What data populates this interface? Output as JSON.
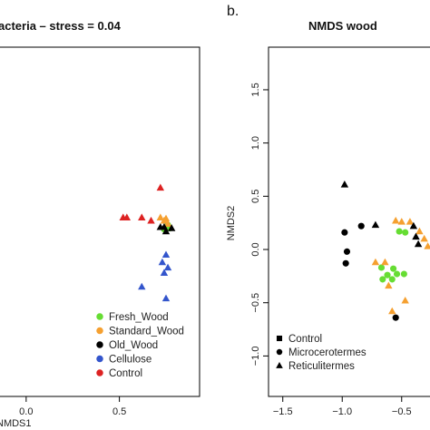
{
  "chart_data": [
    {
      "panel": "",
      "type": "scatter",
      "title": "acteria – stress = 0.04",
      "xlabel": "NMDS1",
      "ylabel": "",
      "xlim": [
        -0.15,
        0.93
      ],
      "ylim": [
        -1.38,
        1.9
      ],
      "x_ticks": [
        0.0,
        0.5
      ],
      "x_tick_labels": [
        "0.0",
        "0.5"
      ],
      "legend": "bottom-right",
      "series": [
        {
          "name": "Fresh_Wood",
          "color": "#66dd33",
          "marker": "circle",
          "points": [
            [
              0.74,
              0.19
            ],
            [
              0.76,
              0.23
            ],
            [
              0.77,
              0.2
            ]
          ]
        },
        {
          "name": "Standard_Wood",
          "color": "#f5a030",
          "marker": "triangle",
          "points": [
            [
              0.72,
              0.3
            ],
            [
              0.74,
              0.27
            ],
            [
              0.76,
              0.24
            ],
            [
              0.75,
              0.29
            ]
          ]
        },
        {
          "name": "Old_Wood",
          "color": "#000000",
          "marker": "triangle",
          "points": [
            [
              0.72,
              0.21
            ],
            [
              0.74,
              0.21
            ],
            [
              0.75,
              0.17
            ],
            [
              0.78,
              0.2
            ]
          ]
        },
        {
          "name": "Cellulose",
          "color": "#3355cc",
          "marker": "triangle",
          "points": [
            [
              0.73,
              -0.12
            ],
            [
              0.75,
              -0.05
            ],
            [
              0.76,
              -0.17
            ],
            [
              0.74,
              -0.22
            ],
            [
              0.62,
              -0.35
            ],
            [
              0.75,
              -0.46
            ]
          ]
        },
        {
          "name": "Control",
          "color": "#dd2222",
          "marker": "triangle",
          "points": [
            [
              0.52,
              0.3
            ],
            [
              0.54,
              0.3
            ],
            [
              0.62,
              0.3
            ],
            [
              0.67,
              0.27
            ],
            [
              0.72,
              0.58
            ]
          ]
        }
      ]
    },
    {
      "panel": "b.",
      "type": "scatter",
      "title": "NMDS wood",
      "xlabel": "",
      "ylabel": "NMDS2",
      "xlim": [
        -1.62,
        -0.17
      ],
      "ylim": [
        -1.38,
        1.9
      ],
      "x_ticks": [
        -1.5,
        -1.0,
        -0.5
      ],
      "x_tick_labels": [
        "−1.5",
        "−1.0",
        "−0.5"
      ],
      "y_ticks": [
        -1.0,
        -0.5,
        0.0,
        0.5,
        1.0,
        1.5
      ],
      "y_tick_labels": [
        "−1.0",
        "−0.5",
        "0.0",
        "0.5",
        "1.0",
        "1.5"
      ],
      "legend": "bottom-left",
      "series": [
        {
          "name": "Control",
          "color": "#000000",
          "marker": "square",
          "points": [
            [
              -0.22,
              0.62
            ]
          ]
        },
        {
          "name": "Microcerotermes",
          "color": "#000000",
          "marker": "circle",
          "points": [
            [
              -0.98,
              0.16
            ],
            [
              -0.96,
              -0.02
            ],
            [
              -0.97,
              -0.13
            ],
            [
              -0.84,
              0.22
            ],
            [
              -0.55,
              -0.64
            ]
          ]
        },
        {
          "name": "Reticulitermes",
          "color": "#000000",
          "marker": "triangle",
          "points": [
            [
              -0.98,
              0.61
            ],
            [
              -0.72,
              0.23
            ],
            [
              -0.2,
              0.01
            ]
          ]
        },
        {
          "name": "",
          "color": "#66dd33",
          "marker": "circle",
          "points": [
            [
              -0.52,
              0.17
            ],
            [
              -0.47,
              0.16
            ],
            [
              -0.67,
              -0.17
            ],
            [
              -0.62,
              -0.24
            ],
            [
              -0.58,
              -0.28
            ],
            [
              -0.54,
              -0.23
            ],
            [
              -0.48,
              -0.23
            ],
            [
              -0.57,
              -0.18
            ],
            [
              -0.66,
              -0.28
            ]
          ]
        },
        {
          "name": "",
          "color": "#f5a030",
          "marker": "triangle",
          "points": [
            [
              -0.55,
              0.27
            ],
            [
              -0.5,
              0.26
            ],
            [
              -0.43,
              0.26
            ],
            [
              -0.35,
              0.17
            ],
            [
              -0.31,
              0.1
            ],
            [
              -0.28,
              0.03
            ],
            [
              -0.72,
              -0.12
            ],
            [
              -0.61,
              -0.34
            ],
            [
              -0.47,
              -0.48
            ],
            [
              -0.58,
              -0.58
            ],
            [
              -0.64,
              -0.12
            ]
          ]
        },
        {
          "name": "",
          "color": "#000000",
          "marker": "triangle",
          "points": [
            [
              -0.4,
              0.22
            ],
            [
              -0.38,
              0.12
            ],
            [
              -0.36,
              0.05
            ]
          ]
        }
      ]
    }
  ]
}
